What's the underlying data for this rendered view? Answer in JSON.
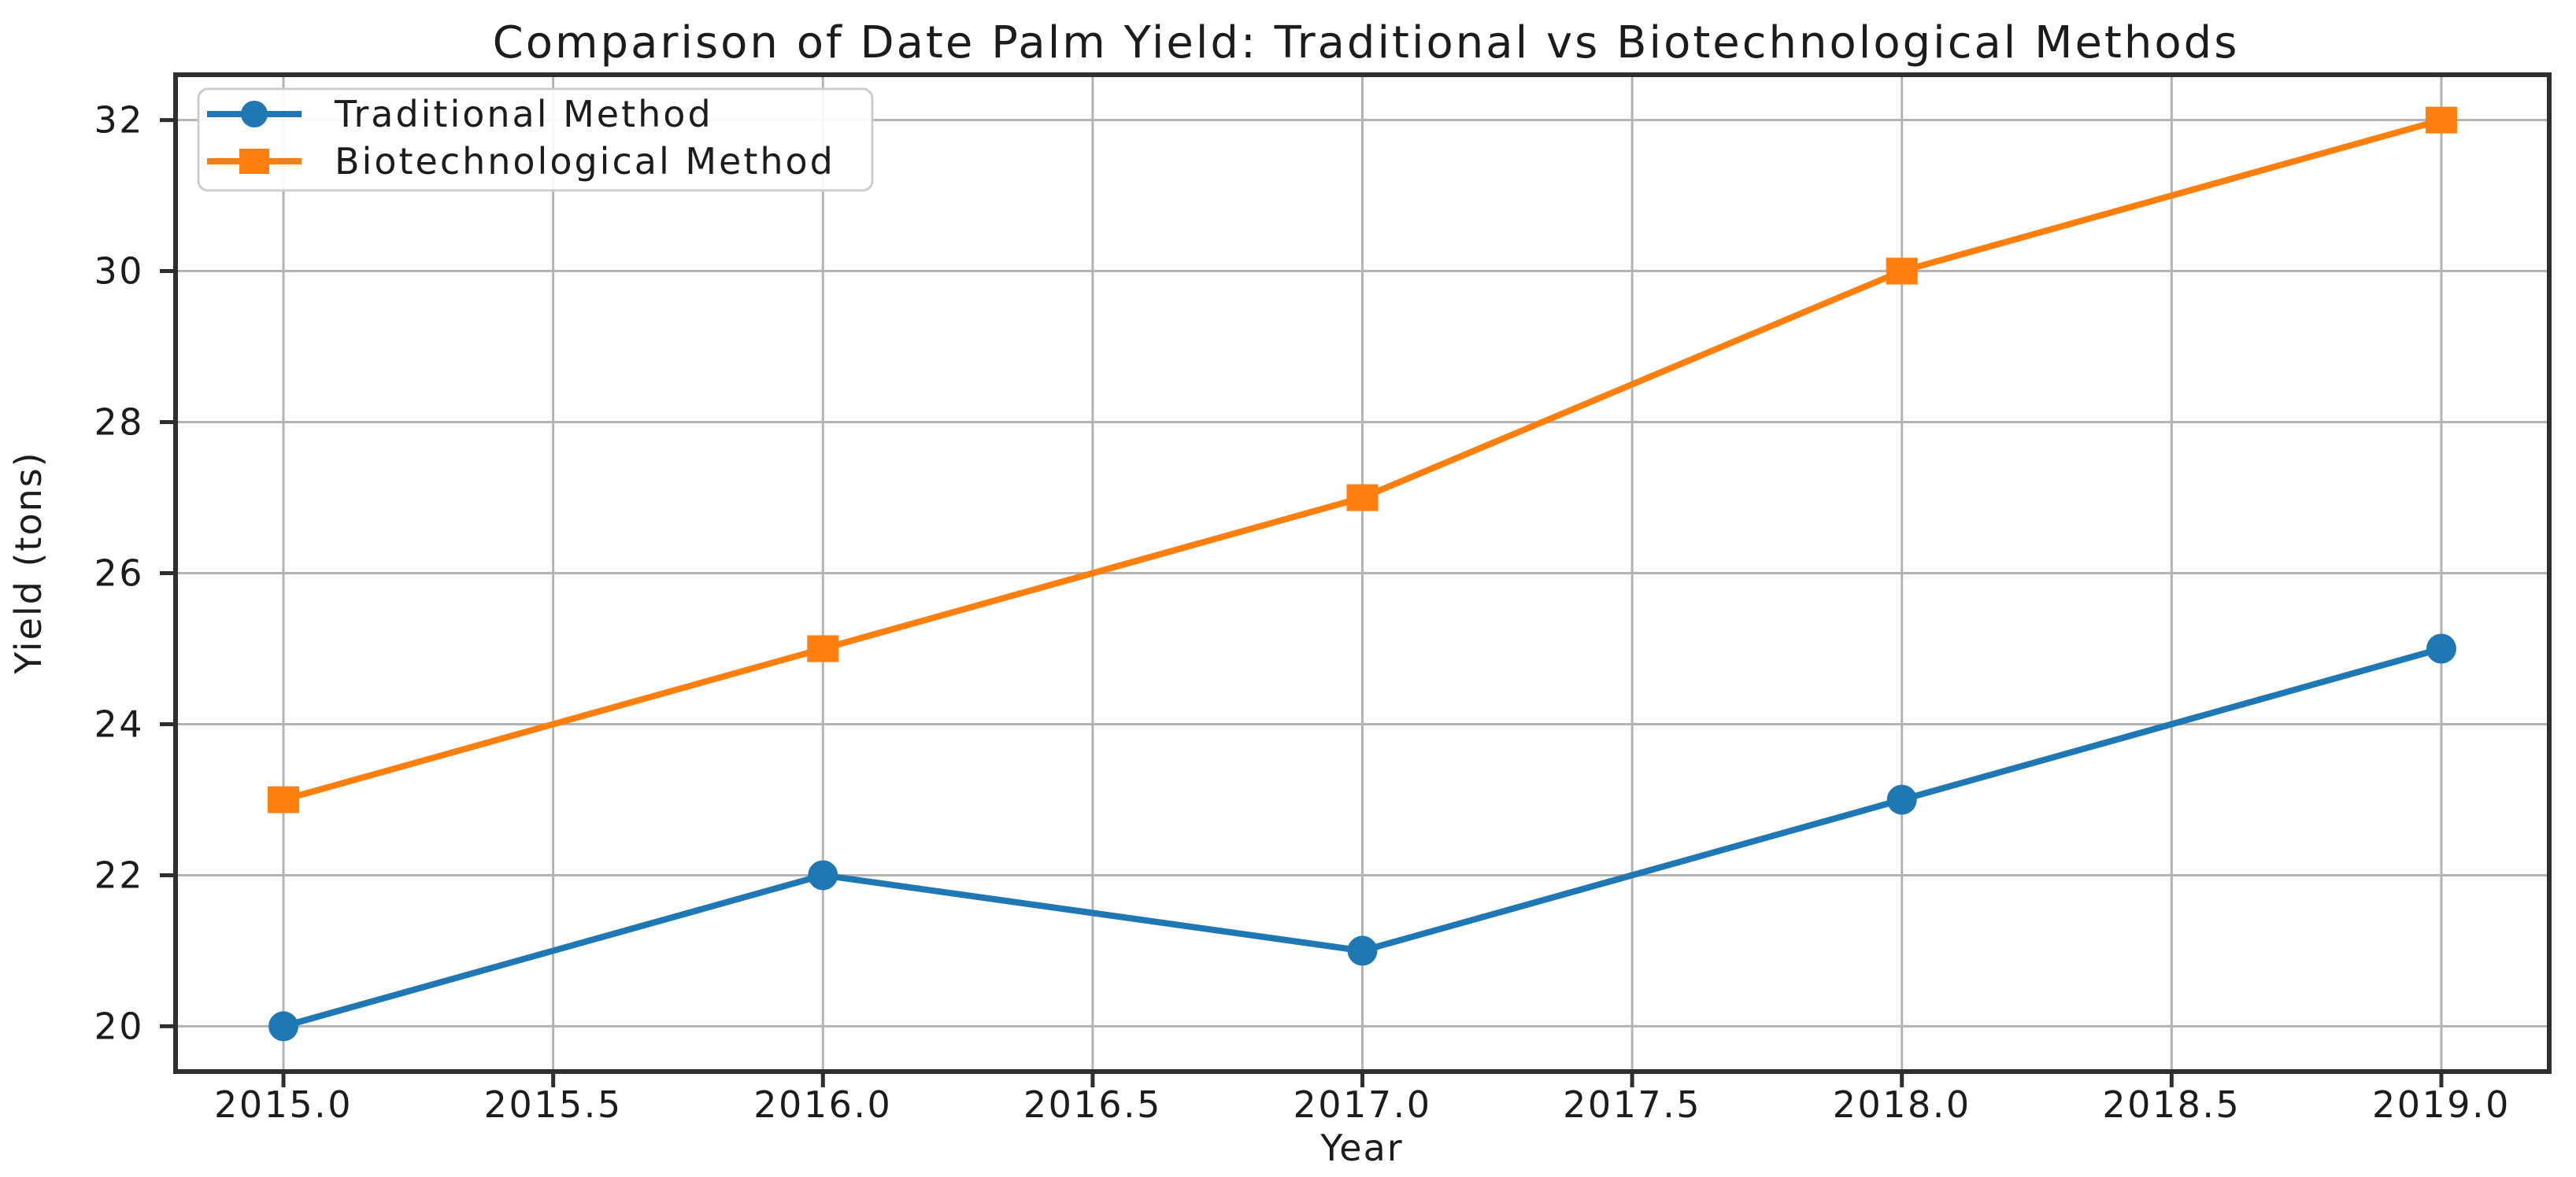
{
  "chart_data": {
    "type": "line",
    "title": "Comparison of Date Palm Yield: Traditional vs Biotechnological Methods",
    "xlabel": "Year",
    "ylabel": "Yield (tons)",
    "x": [
      2015,
      2016,
      2017,
      2018,
      2019
    ],
    "series": [
      {
        "name": "Traditional Method",
        "values": [
          20,
          22,
          21,
          23,
          25
        ],
        "color": "#1f77b4",
        "marker": "circle"
      },
      {
        "name": "Biotechnological Method",
        "values": [
          23,
          25,
          27,
          30,
          32
        ],
        "color": "#ff7f0e",
        "marker": "square"
      }
    ],
    "xlim": [
      2014.8,
      2019.2
    ],
    "ylim": [
      19.4,
      32.6
    ],
    "xtick_values": [
      2015.0,
      2015.5,
      2016.0,
      2016.5,
      2017.0,
      2017.5,
      2018.0,
      2018.5,
      2019.0
    ],
    "xtick_labels": [
      "2015.0",
      "2015.5",
      "2016.0",
      "2016.5",
      "2017.0",
      "2017.5",
      "2018.0",
      "2018.5",
      "2019.0"
    ],
    "ytick_values": [
      20,
      22,
      24,
      26,
      28,
      30,
      32
    ],
    "ytick_labels": [
      "20",
      "22",
      "24",
      "26",
      "28",
      "30",
      "32"
    ],
    "grid": true,
    "legend_position": "upper-left",
    "colors": {
      "grid": "#b3b3b3",
      "spine": "#2f2f2f",
      "text": "#1c1c1c",
      "legend_border": "#cccccc",
      "background": "#ffffff"
    }
  }
}
